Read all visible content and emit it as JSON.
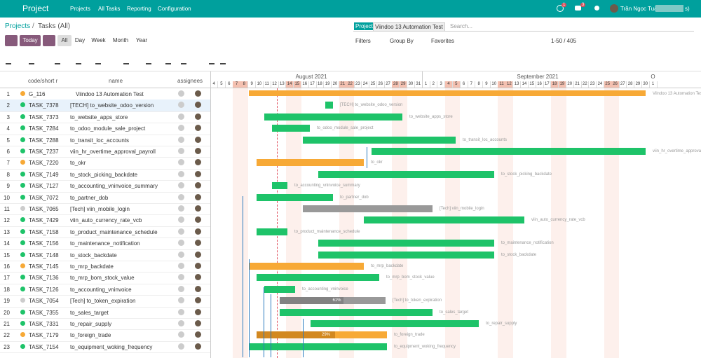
{
  "navbar": {
    "brand": "Project",
    "menu": [
      "Projects",
      "All Tasks",
      "Reporting",
      "Configuration"
    ],
    "badges": [
      "1",
      "3"
    ],
    "user": "Trần Ngọc Tuấn",
    "user_suffix": "s)"
  },
  "breadcrumb": [
    "Projects",
    "Tasks (All)"
  ],
  "date_buttons": [
    "Today",
    "All",
    "Day",
    "Week",
    "Month",
    "Year"
  ],
  "search": {
    "facet_label": "Project",
    "facet_value": "Viindoo 13 Automation Test",
    "placeholder": "Search..."
  },
  "filters": [
    "Filters",
    "Group By",
    "Favorites"
  ],
  "pager": "1-50 / 405",
  "columns": [
    "code/short r",
    "name",
    "assignees"
  ],
  "months": [
    "August 2021",
    "September 2021",
    "O"
  ],
  "days": {
    "august": [
      4,
      5,
      6,
      7,
      8,
      9,
      10,
      11,
      12,
      13,
      14,
      15,
      16,
      17,
      18,
      19,
      20,
      21,
      22,
      23,
      24,
      25,
      26,
      27,
      28,
      29,
      30,
      31
    ],
    "september": [
      1,
      2,
      3,
      4,
      5,
      6,
      7,
      8,
      9,
      10,
      11,
      12,
      13,
      14,
      15,
      16,
      17,
      18,
      19,
      20,
      21,
      22,
      23,
      24,
      25,
      26,
      27,
      28,
      29,
      30
    ],
    "october": [
      1
    ]
  },
  "rows": [
    {
      "num": "1",
      "code": "G_116",
      "name": "Viindoo 13 Automation Test"
    },
    {
      "num": "2",
      "code": "TASK_7378",
      "name": "[TECH] to_website_odoo_version"
    },
    {
      "num": "3",
      "code": "TASK_7373",
      "name": "to_website_apps_store"
    },
    {
      "num": "4",
      "code": "TASK_7284",
      "name": "to_odoo_module_sale_project"
    },
    {
      "num": "5",
      "code": "TASK_7288",
      "name": "to_transit_loc_accounts"
    },
    {
      "num": "6",
      "code": "TASK_7237",
      "name": "viin_hr_overtime_approval_payroll"
    },
    {
      "num": "7",
      "code": "TASK_7220",
      "name": "to_okr"
    },
    {
      "num": "8",
      "code": "TASK_7149",
      "name": "to_stock_picking_backdate"
    },
    {
      "num": "9",
      "code": "TASK_7127",
      "name": "to_accounting_vninvoice_summary"
    },
    {
      "num": "10",
      "code": "TASK_7072",
      "name": "to_partner_dob"
    },
    {
      "num": "11",
      "code": "TASK_7065",
      "name": "[Tech] viin_mobile_login"
    },
    {
      "num": "12",
      "code": "TASK_7429",
      "name": "viin_auto_currency_rate_vcb"
    },
    {
      "num": "13",
      "code": "TASK_7158",
      "name": "to_product_maintenance_schedule"
    },
    {
      "num": "14",
      "code": "TASK_7156",
      "name": "to_maintenance_notification"
    },
    {
      "num": "15",
      "code": "TASK_7148",
      "name": "to_stock_backdate"
    },
    {
      "num": "16",
      "code": "TASK_7145",
      "name": "to_mrp_backdate"
    },
    {
      "num": "17",
      "code": "TASK_7136",
      "name": "to_mrp_bom_stock_value"
    },
    {
      "num": "18",
      "code": "TASK_7126",
      "name": "to_accounting_vninvoice"
    },
    {
      "num": "19",
      "code": "TASK_7054",
      "name": "[Tech] to_token_expiration",
      "progress_label": "61%"
    },
    {
      "num": "20",
      "code": "TASK_7355",
      "name": "to_sales_target"
    },
    {
      "num": "21",
      "code": "TASK_7331",
      "name": "to_repair_supply"
    },
    {
      "num": "22",
      "code": "TASK_7179",
      "name": "to_foreign_trade",
      "progress_label": "29%"
    },
    {
      "num": "23",
      "code": "TASK_7154",
      "name": "to_equipment_woking_frequency"
    }
  ]
}
